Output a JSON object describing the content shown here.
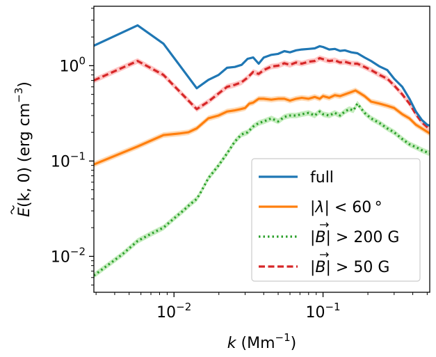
{
  "chart_data": {
    "type": "line",
    "xscale": "log",
    "yscale": "log",
    "xlim": [
      0.0029,
      0.52
    ],
    "ylim": [
      0.0042,
      4.2
    ],
    "xlabel": "k (Mm⁻¹)",
    "ylabel": "Ẽ(k, 0) (erg cm⁻³)",
    "xlabel_base": "k",
    "xlabel_rest": " (Mm",
    "xlabel_exp": "−1",
    "xlabel_close": ")",
    "ylabel_base": "E",
    "ylabel_mid": "(k, 0) (erg cm",
    "ylabel_exp": "−3",
    "ylabel_close": ")",
    "x_ticks": [
      {
        "value": 0.01,
        "base": "10",
        "exp": "−2"
      },
      {
        "value": 0.1,
        "base": "10",
        "exp": "−1"
      }
    ],
    "y_ticks": [
      {
        "value": 0.01,
        "base": "10",
        "exp": "−2"
      },
      {
        "value": 0.1,
        "base": "10",
        "exp": "−1"
      },
      {
        "value": 1,
        "base": "10",
        "exp": "0"
      }
    ],
    "legend_position": "lower-right",
    "series": [
      {
        "name": "full",
        "label_parts": [
          "full"
        ],
        "color": "#1f77b4",
        "style": "solid",
        "x": [
          0.0029,
          0.0057,
          0.0085,
          0.0142,
          0.017,
          0.0199,
          0.0227,
          0.0256,
          0.0284,
          0.0312,
          0.034,
          0.037,
          0.04,
          0.045,
          0.05,
          0.055,
          0.06,
          0.066,
          0.072,
          0.08,
          0.088,
          0.095,
          0.1,
          0.11,
          0.12,
          0.13,
          0.14,
          0.155,
          0.17,
          0.19,
          0.21,
          0.24,
          0.27,
          0.3,
          0.34,
          0.38,
          0.42,
          0.46,
          0.5,
          0.52
        ],
        "y": [
          1.62,
          2.65,
          1.7,
          0.58,
          0.71,
          0.8,
          0.95,
          0.97,
          1.02,
          1.18,
          1.22,
          1.05,
          1.22,
          1.3,
          1.33,
          1.42,
          1.38,
          1.45,
          1.48,
          1.5,
          1.52,
          1.6,
          1.57,
          1.48,
          1.5,
          1.43,
          1.45,
          1.38,
          1.35,
          1.22,
          1.12,
          0.98,
          0.9,
          0.73,
          0.6,
          0.45,
          0.33,
          0.27,
          0.24,
          0.235
        ]
      },
      {
        "name": "|λ| < 60°",
        "label_parts": [
          "|",
          "λ",
          "| < 60 °"
        ],
        "color": "#ff7f0e",
        "band_color": "#ffbb78",
        "style": "solid",
        "x": [
          0.0029,
          0.0057,
          0.0085,
          0.011,
          0.0125,
          0.0142,
          0.017,
          0.0199,
          0.0227,
          0.0256,
          0.028,
          0.03,
          0.032,
          0.034,
          0.037,
          0.04,
          0.045,
          0.05,
          0.055,
          0.06,
          0.066,
          0.072,
          0.08,
          0.088,
          0.095,
          0.1,
          0.11,
          0.12,
          0.13,
          0.14,
          0.155,
          0.165,
          0.175,
          0.19,
          0.21,
          0.24,
          0.27,
          0.3,
          0.34,
          0.38,
          0.42,
          0.46,
          0.52
        ],
        "y": [
          0.092,
          0.142,
          0.187,
          0.195,
          0.2,
          0.22,
          0.28,
          0.3,
          0.33,
          0.34,
          0.35,
          0.36,
          0.4,
          0.41,
          0.45,
          0.45,
          0.44,
          0.45,
          0.45,
          0.43,
          0.45,
          0.46,
          0.45,
          0.47,
          0.45,
          0.48,
          0.46,
          0.49,
          0.48,
          0.5,
          0.53,
          0.55,
          0.52,
          0.48,
          0.42,
          0.4,
          0.38,
          0.36,
          0.31,
          0.28,
          0.24,
          0.22,
          0.195
        ]
      },
      {
        "name": "|B| > 200 G",
        "label_parts": [
          "|",
          "B",
          "| > 200 G"
        ],
        "vector_label": true,
        "color": "#2ca02c",
        "band_color": "#98df8a",
        "style": "dotted",
        "x": [
          0.0029,
          0.0045,
          0.0057,
          0.007,
          0.0085,
          0.01,
          0.0115,
          0.0128,
          0.0142,
          0.015,
          0.017,
          0.0199,
          0.0227,
          0.0256,
          0.0284,
          0.0312,
          0.034,
          0.037,
          0.04,
          0.045,
          0.05,
          0.055,
          0.06,
          0.066,
          0.072,
          0.08,
          0.088,
          0.095,
          0.1,
          0.11,
          0.12,
          0.13,
          0.14,
          0.15,
          0.16,
          0.17,
          0.19,
          0.21,
          0.24,
          0.27,
          0.3,
          0.34,
          0.38,
          0.42,
          0.46,
          0.52
        ],
        "y": [
          0.0063,
          0.0105,
          0.0145,
          0.0172,
          0.02,
          0.025,
          0.03,
          0.035,
          0.04,
          0.046,
          0.066,
          0.09,
          0.12,
          0.16,
          0.19,
          0.2,
          0.23,
          0.25,
          0.26,
          0.28,
          0.26,
          0.29,
          0.3,
          0.3,
          0.31,
          0.32,
          0.3,
          0.33,
          0.31,
          0.3,
          0.32,
          0.3,
          0.33,
          0.35,
          0.34,
          0.4,
          0.32,
          0.28,
          0.25,
          0.22,
          0.2,
          0.17,
          0.15,
          0.14,
          0.13,
          0.12
        ]
      },
      {
        "name": "|B| > 50 G",
        "label_parts": [
          "|",
          "B",
          "| > 50 G"
        ],
        "vector_label": true,
        "color": "#d62728",
        "band_color": "#ff9896",
        "style": "dashed",
        "x": [
          0.0029,
          0.0057,
          0.0085,
          0.0142,
          0.017,
          0.0199,
          0.0227,
          0.0256,
          0.0284,
          0.0312,
          0.034,
          0.037,
          0.04,
          0.045,
          0.05,
          0.055,
          0.06,
          0.066,
          0.072,
          0.08,
          0.088,
          0.095,
          0.1,
          0.11,
          0.12,
          0.13,
          0.14,
          0.155,
          0.17,
          0.19,
          0.21,
          0.24,
          0.27,
          0.3,
          0.34,
          0.38,
          0.42,
          0.46,
          0.52
        ],
        "y": [
          0.7,
          1.12,
          0.8,
          0.35,
          0.42,
          0.51,
          0.6,
          0.63,
          0.67,
          0.75,
          0.86,
          0.82,
          0.9,
          0.98,
          1.0,
          1.06,
          1.02,
          1.08,
          1.05,
          1.1,
          1.12,
          1.2,
          1.17,
          1.12,
          1.14,
          1.08,
          1.1,
          1.05,
          1.05,
          0.97,
          0.9,
          0.8,
          0.73,
          0.62,
          0.5,
          0.4,
          0.31,
          0.255,
          0.215
        ]
      }
    ]
  }
}
